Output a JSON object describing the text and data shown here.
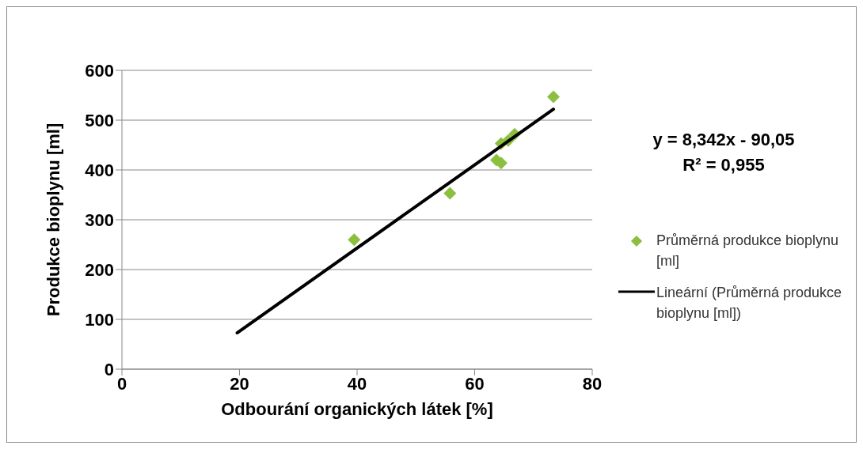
{
  "chart_data": {
    "type": "scatter",
    "xlabel": "Odbourání organických látek [%]",
    "ylabel": "Produkce bioplynu [ml]",
    "xlim": [
      0,
      80
    ],
    "xticks": [
      0,
      20,
      40,
      60,
      80
    ],
    "ylim": [
      0,
      600
    ],
    "yticks": [
      0,
      100,
      200,
      300,
      400,
      500,
      600
    ],
    "grid": "y",
    "legend": "right",
    "marker": "diamond",
    "annotations": [
      "y = 8,342x - 90,05",
      "R² = 0,955"
    ],
    "series": [
      {
        "name": "Průměrná produkce bioplynu [ml]",
        "color": "#8cbf3f",
        "x": [
          39.5,
          55.8,
          63.7,
          64.5,
          64.5,
          65.7,
          66.8,
          73.4
        ],
        "values": [
          260,
          353,
          420,
          414,
          453,
          459,
          472,
          547
        ]
      },
      {
        "name": "Lineární (Průměrná produkce bioplynu [ml])",
        "type": "line",
        "color": "#000000",
        "line_style": "solid",
        "marker": "none",
        "x": [
          19.6,
          73.4
        ],
        "values": [
          73,
          522
        ]
      }
    ]
  }
}
